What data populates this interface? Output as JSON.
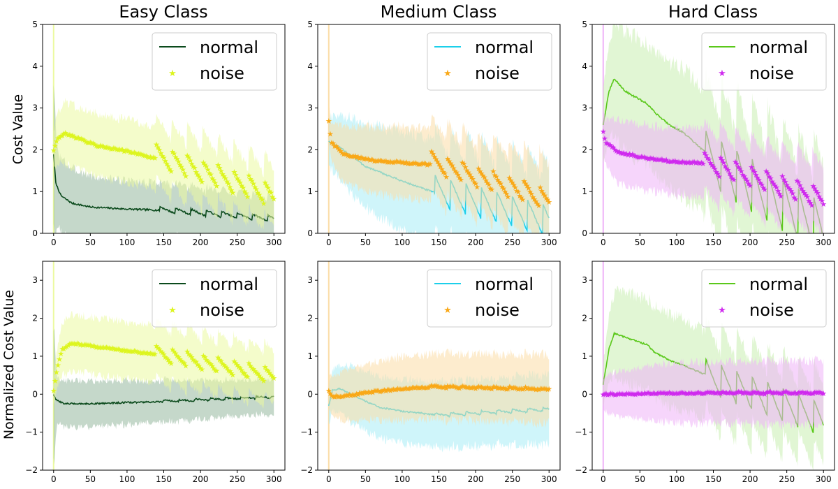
{
  "figure": {
    "column_titles": [
      "Easy Class",
      "Medium Class",
      "Hard Class"
    ],
    "row_ylabels": [
      "Cost Value",
      "Normalized Cost Value"
    ]
  },
  "chart_data": [
    {
      "type": "line",
      "panel": "row1-col1",
      "title": "Easy Class",
      "ylabel": "Cost Value",
      "xlim": [
        -15,
        315
      ],
      "ylim": [
        0,
        5
      ],
      "x_ticks": [
        0,
        50,
        100,
        150,
        200,
        250,
        300
      ],
      "y_ticks": [
        0,
        1,
        2,
        3,
        4,
        5
      ],
      "legend": {
        "position": "top-right",
        "entries": [
          "normal",
          "noise"
        ]
      },
      "series": [
        {
          "name": "normal",
          "color": "#0b4a1c",
          "marker": "line",
          "band_color": "#5a8f68",
          "keypoints": [
            [
              0,
              1.9
            ],
            [
              3,
              1.2
            ],
            [
              10,
              0.9
            ],
            [
              25,
              0.72
            ],
            [
              50,
              0.63
            ],
            [
              100,
              0.58
            ],
            [
              135,
              0.56
            ],
            [
              300,
              0.33
            ]
          ],
          "sawtooth": {
            "start": 145,
            "period": 21,
            "jump": 0.14,
            "decay": 0.1
          },
          "band_halfwidth": [
            [
              0,
              1.8
            ],
            [
              5,
              0.9
            ],
            [
              60,
              0.72
            ],
            [
              300,
              0.5
            ]
          ]
        },
        {
          "name": "noise",
          "color": "#ddf51f",
          "marker": "star",
          "band_color": "#ebfaa0",
          "keypoints": [
            [
              0,
              2.0
            ],
            [
              5,
              2.25
            ],
            [
              15,
              2.4
            ],
            [
              30,
              2.3
            ],
            [
              60,
              2.1
            ],
            [
              100,
              1.97
            ],
            [
              140,
              1.8
            ],
            [
              300,
              0.85
            ]
          ],
          "sawtooth": {
            "start": 140,
            "period": 21,
            "jump": 0.55,
            "decay": 0.45
          },
          "band_halfwidth": [
            [
              0,
              0.5
            ],
            [
              15,
              0.75
            ],
            [
              100,
              0.75
            ],
            [
              300,
              0.7
            ]
          ]
        }
      ]
    },
    {
      "type": "line",
      "panel": "row1-col2",
      "title": "Medium Class",
      "ylabel": "",
      "xlim": [
        -15,
        315
      ],
      "ylim": [
        0,
        5
      ],
      "x_ticks": [
        0,
        50,
        100,
        150,
        200,
        250,
        300
      ],
      "y_ticks": [
        0,
        1,
        2,
        3,
        4,
        5
      ],
      "legend": {
        "position": "top-right",
        "entries": [
          "normal",
          "noise"
        ]
      },
      "series": [
        {
          "name": "normal",
          "color": "#1ccfea",
          "marker": "line",
          "band_color": "#a7ecf5",
          "keypoints": [
            [
              0,
              2.2
            ],
            [
              20,
              2.0
            ],
            [
              50,
              1.6
            ],
            [
              100,
              1.25
            ],
            [
              140,
              1.0
            ],
            [
              300,
              0.25
            ]
          ],
          "sawtooth": {
            "start": 145,
            "period": 21,
            "jump": 0.75,
            "decay": 0.7
          },
          "band_halfwidth": [
            [
              0,
              0.6
            ],
            [
              30,
              0.9
            ],
            [
              100,
              1.2
            ],
            [
              300,
              1.3
            ]
          ]
        },
        {
          "name": "noise",
          "color": "#f9a817",
          "marker": "star",
          "band_color": "#fbdca6",
          "keypoints": [
            [
              0,
              2.7
            ],
            [
              3,
              2.2
            ],
            [
              20,
              1.9
            ],
            [
              60,
              1.75
            ],
            [
              100,
              1.7
            ],
            [
              140,
              1.65
            ],
            [
              300,
              0.75
            ]
          ],
          "sawtooth": {
            "start": 140,
            "period": 21,
            "jump": 0.5,
            "decay": 0.4
          },
          "band_halfwidth": [
            [
              0,
              0.4
            ],
            [
              20,
              0.7
            ],
            [
              100,
              0.85
            ],
            [
              300,
              0.9
            ]
          ]
        }
      ]
    },
    {
      "type": "line",
      "panel": "row1-col3",
      "title": "Hard Class",
      "ylabel": "",
      "xlim": [
        -15,
        315
      ],
      "ylim": [
        0,
        5
      ],
      "x_ticks": [
        0,
        50,
        100,
        150,
        200,
        250,
        300
      ],
      "y_ticks": [
        0,
        1,
        2,
        3,
        4,
        5
      ],
      "legend": {
        "position": "top-right",
        "entries": [
          "normal",
          "noise"
        ]
      },
      "series": [
        {
          "name": "normal",
          "color": "#5ac81a",
          "marker": "line",
          "band_color": "#c9eeb0",
          "keypoints": [
            [
              0,
              2.6
            ],
            [
              8,
              3.4
            ],
            [
              15,
              3.7
            ],
            [
              30,
              3.4
            ],
            [
              60,
              3.1
            ],
            [
              70,
              2.9
            ],
            [
              90,
              2.6
            ],
            [
              110,
              2.4
            ],
            [
              135,
              2.0
            ],
            [
              300,
              0.2
            ]
          ],
          "sawtooth": {
            "start": 140,
            "period": 21,
            "jump": 1.3,
            "decay": 1.6
          },
          "band_halfwidth": [
            [
              0,
              1.0
            ],
            [
              20,
              1.4
            ],
            [
              100,
              1.5
            ],
            [
              300,
              1.6
            ]
          ]
        },
        {
          "name": "noise",
          "color": "#cf2aee",
          "marker": "star",
          "band_color": "#efb3f8",
          "keypoints": [
            [
              0,
              2.45
            ],
            [
              3,
              2.2
            ],
            [
              20,
              1.95
            ],
            [
              60,
              1.8
            ],
            [
              100,
              1.72
            ],
            [
              135,
              1.68
            ],
            [
              300,
              0.8
            ]
          ],
          "sawtooth": {
            "start": 138,
            "period": 21,
            "jump": 0.5,
            "decay": 0.45
          },
          "band_halfwidth": [
            [
              0,
              0.5
            ],
            [
              20,
              0.75
            ],
            [
              100,
              0.8
            ],
            [
              300,
              0.85
            ]
          ]
        }
      ]
    },
    {
      "type": "line",
      "panel": "row2-col1",
      "title": "",
      "ylabel": "Normalized Cost Value",
      "xlim": [
        -15,
        315
      ],
      "ylim": [
        -2,
        3.5
      ],
      "x_ticks": [
        0,
        50,
        100,
        150,
        200,
        250,
        300
      ],
      "y_ticks": [
        -2,
        -1,
        0,
        1,
        2,
        3
      ],
      "legend": {
        "position": "top-right",
        "entries": [
          "normal",
          "noise"
        ]
      },
      "series": [
        {
          "name": "normal",
          "color": "#0b4a1c",
          "marker": "line",
          "band_color": "#5a8f68",
          "keypoints": [
            [
              0,
              0.0
            ],
            [
              3,
              -0.15
            ],
            [
              15,
              -0.25
            ],
            [
              50,
              -0.25
            ],
            [
              100,
              -0.22
            ],
            [
              150,
              -0.2
            ],
            [
              300,
              -0.08
            ]
          ],
          "sawtooth": {
            "start": 150,
            "period": 21,
            "jump": 0.06,
            "decay": 0.04
          },
          "band_halfwidth": [
            [
              0,
              1.8
            ],
            [
              5,
              0.6
            ],
            [
              40,
              0.62
            ],
            [
              300,
              0.45
            ]
          ]
        },
        {
          "name": "noise",
          "color": "#ddf51f",
          "marker": "star",
          "band_color": "#ebfaa0",
          "keypoints": [
            [
              0,
              0.1
            ],
            [
              5,
              0.7
            ],
            [
              12,
              1.2
            ],
            [
              25,
              1.35
            ],
            [
              60,
              1.25
            ],
            [
              100,
              1.15
            ],
            [
              140,
              1.05
            ],
            [
              300,
              0.45
            ]
          ],
          "sawtooth": {
            "start": 140,
            "period": 21,
            "jump": 0.4,
            "decay": 0.35
          },
          "band_halfwidth": [
            [
              0,
              0.4
            ],
            [
              15,
              0.75
            ],
            [
              100,
              0.75
            ],
            [
              300,
              0.7
            ]
          ]
        }
      ]
    },
    {
      "type": "line",
      "panel": "row2-col2",
      "title": "",
      "ylabel": "",
      "xlim": [
        -15,
        315
      ],
      "ylim": [
        -2,
        3.5
      ],
      "x_ticks": [
        0,
        50,
        100,
        150,
        200,
        250,
        300
      ],
      "y_ticks": [
        -2,
        -1,
        0,
        1,
        2,
        3
      ],
      "legend": {
        "position": "top-right",
        "entries": [
          "normal",
          "noise"
        ]
      },
      "series": [
        {
          "name": "normal",
          "color": "#1ccfea",
          "marker": "line",
          "band_color": "#a7ecf5",
          "keypoints": [
            [
              0,
              -0.3
            ],
            [
              5,
              0.1
            ],
            [
              15,
              0.15
            ],
            [
              40,
              -0.1
            ],
            [
              70,
              -0.35
            ],
            [
              100,
              -0.45
            ],
            [
              150,
              -0.55
            ],
            [
              200,
              -0.5
            ],
            [
              300,
              -0.4
            ]
          ],
          "sawtooth": {
            "start": 145,
            "period": 21,
            "jump": 0.1,
            "decay": 0.1
          },
          "band_halfwidth": [
            [
              0,
              0.5
            ],
            [
              30,
              0.75
            ],
            [
              100,
              0.85
            ],
            [
              300,
              0.9
            ]
          ]
        },
        {
          "name": "noise",
          "color": "#f9a817",
          "marker": "star",
          "band_color": "#fbdca6",
          "keypoints": [
            [
              0,
              0.1
            ],
            [
              5,
              -0.05
            ],
            [
              20,
              -0.05
            ],
            [
              50,
              0.05
            ],
            [
              100,
              0.15
            ],
            [
              150,
              0.2
            ],
            [
              300,
              0.13
            ]
          ],
          "sawtooth": {
            "start": 140,
            "period": 21,
            "jump": 0.05,
            "decay": 0.04
          },
          "band_halfwidth": [
            [
              0,
              0.5
            ],
            [
              20,
              0.65
            ],
            [
              100,
              0.85
            ],
            [
              300,
              0.9
            ]
          ]
        }
      ]
    },
    {
      "type": "line",
      "panel": "row2-col3",
      "title": "",
      "ylabel": "",
      "xlim": [
        -15,
        315
      ],
      "ylim": [
        -2,
        3.5
      ],
      "x_ticks": [
        0,
        50,
        100,
        150,
        200,
        250,
        300
      ],
      "y_ticks": [
        -2,
        -1,
        0,
        1,
        2,
        3
      ],
      "legend": {
        "position": "top-right",
        "entries": [
          "normal",
          "noise"
        ]
      },
      "series": [
        {
          "name": "normal",
          "color": "#5ac81a",
          "marker": "line",
          "band_color": "#c9eeb0",
          "keypoints": [
            [
              0,
              0.25
            ],
            [
              8,
              1.2
            ],
            [
              15,
              1.6
            ],
            [
              30,
              1.5
            ],
            [
              60,
              1.3
            ],
            [
              70,
              1.1
            ],
            [
              90,
              0.9
            ],
            [
              110,
              0.75
            ],
            [
              135,
              0.55
            ],
            [
              300,
              -0.65
            ]
          ],
          "sawtooth": {
            "start": 140,
            "period": 21,
            "jump": 0.9,
            "decay": 1.0
          },
          "band_halfwidth": [
            [
              0,
              0.6
            ],
            [
              20,
              1.2
            ],
            [
              100,
              1.2
            ],
            [
              300,
              1.0
            ]
          ]
        },
        {
          "name": "noise",
          "color": "#cf2aee",
          "marker": "star",
          "band_color": "#efb3f8",
          "keypoints": [
            [
              0,
              0.0
            ],
            [
              50,
              0.02
            ],
            [
              100,
              0.03
            ],
            [
              150,
              0.03
            ],
            [
              300,
              0.03
            ]
          ],
          "sawtooth": {
            "start": 140,
            "period": 21,
            "jump": 0.04,
            "decay": 0.02
          },
          "band_halfwidth": [
            [
              0,
              0.45
            ],
            [
              20,
              0.6
            ],
            [
              100,
              0.8
            ],
            [
              300,
              0.85
            ]
          ]
        }
      ]
    }
  ]
}
